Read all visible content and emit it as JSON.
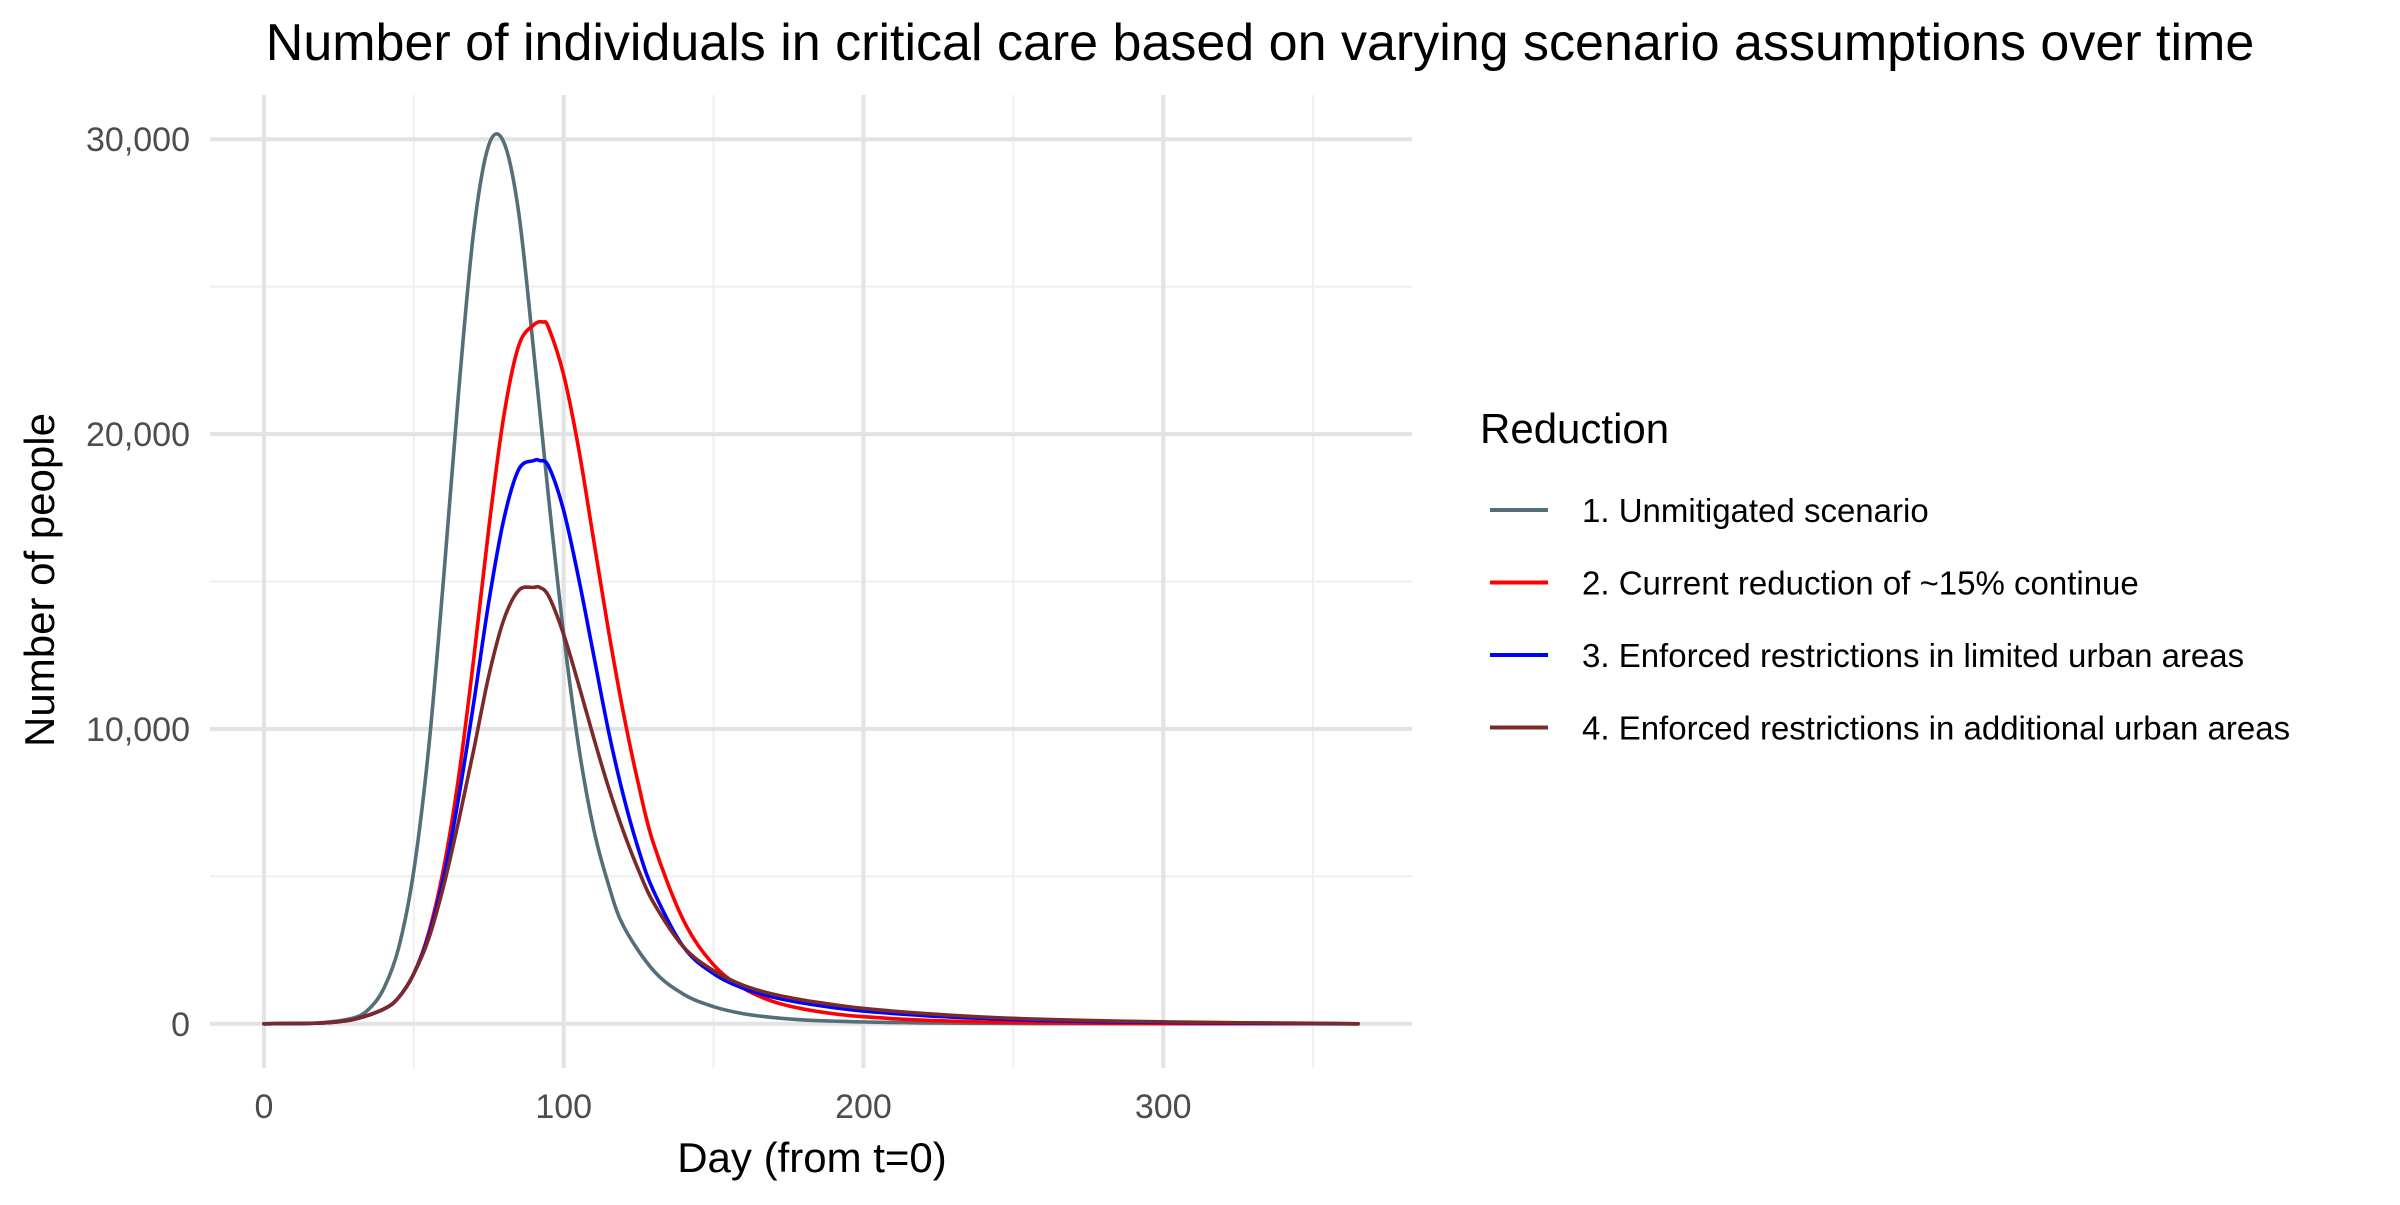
{
  "chart_data": {
    "type": "line",
    "title": "Number of individuals in critical care based on varying scenario assumptions over time",
    "xlabel": "Day (from t=0)",
    "ylabel": "Number of people",
    "xlim": [
      -18,
      383
    ],
    "ylim": [
      -1500,
      31500
    ],
    "x_ticks": [
      0,
      100,
      200,
      300
    ],
    "x_tick_labels": [
      "0",
      "100",
      "200",
      "300"
    ],
    "y_ticks": [
      0,
      10000,
      20000,
      30000
    ],
    "y_tick_labels": [
      "0",
      "10,000",
      "20,000",
      "30,000"
    ],
    "grid": true,
    "legend": {
      "title": "Reduction",
      "position": "right"
    },
    "series": [
      {
        "name": "1. Unmitigated scenario",
        "color": "#546e7a",
        "x": [
          0,
          10,
          20,
          30,
          35,
          40,
          45,
          50,
          55,
          60,
          65,
          70,
          75,
          80,
          85,
          90,
          95,
          100,
          105,
          110,
          115,
          120,
          130,
          140,
          150,
          160,
          170,
          180,
          190,
          200,
          220,
          240,
          260,
          280,
          300,
          320,
          340,
          365
        ],
        "y": [
          0,
          10,
          40,
          200,
          500,
          1200,
          2600,
          5200,
          9400,
          15200,
          21500,
          26900,
          29800,
          29900,
          27500,
          22800,
          17800,
          13200,
          9400,
          6600,
          4700,
          3300,
          1800,
          1000,
          580,
          340,
          210,
          130,
          90,
          60,
          30,
          15,
          8,
          5,
          3,
          2,
          1,
          0
        ]
      },
      {
        "name": "2. Current reduction of ~15% continue",
        "color": "#ff0000",
        "x": [
          0,
          10,
          20,
          30,
          40,
          45,
          50,
          55,
          60,
          65,
          70,
          75,
          80,
          85,
          90,
          93,
          95,
          100,
          105,
          110,
          115,
          120,
          125,
          130,
          140,
          150,
          160,
          170,
          180,
          190,
          200,
          220,
          240,
          260,
          280,
          300,
          320,
          340,
          365
        ],
        "y": [
          0,
          10,
          30,
          150,
          500,
          900,
          1700,
          3100,
          5300,
          8400,
          12400,
          16800,
          20600,
          23000,
          23700,
          23800,
          23600,
          22000,
          19500,
          16400,
          13300,
          10500,
          8100,
          6100,
          3500,
          2000,
          1200,
          750,
          500,
          340,
          240,
          120,
          60,
          30,
          15,
          8,
          4,
          2,
          0
        ]
      },
      {
        "name": "3. Enforced restrictions in limited urban areas",
        "color": "#0000ff",
        "x": [
          0,
          10,
          20,
          30,
          40,
          45,
          50,
          55,
          60,
          65,
          70,
          75,
          80,
          85,
          90,
          92,
          95,
          100,
          105,
          110,
          115,
          120,
          125,
          130,
          140,
          150,
          160,
          170,
          180,
          190,
          200,
          220,
          240,
          260,
          280,
          300,
          320,
          340,
          365
        ],
        "y": [
          0,
          10,
          30,
          150,
          500,
          900,
          1700,
          3000,
          5000,
          7700,
          10900,
          14300,
          17100,
          18800,
          19100,
          19100,
          18900,
          17400,
          15100,
          12500,
          9900,
          7700,
          5900,
          4500,
          2600,
          1700,
          1200,
          900,
          700,
          550,
          430,
          280,
          180,
          110,
          70,
          45,
          25,
          15,
          0
        ]
      },
      {
        "name": "4. Enforced restrictions in additional urban areas",
        "color": "#7b2a2a",
        "x": [
          0,
          10,
          20,
          30,
          40,
          45,
          50,
          55,
          60,
          65,
          70,
          75,
          80,
          85,
          90,
          92,
          95,
          100,
          105,
          110,
          115,
          120,
          125,
          130,
          140,
          150,
          160,
          170,
          180,
          190,
          200,
          220,
          240,
          260,
          280,
          300,
          320,
          340,
          365
        ],
        "y": [
          0,
          10,
          30,
          150,
          500,
          900,
          1700,
          2900,
          4700,
          6900,
          9300,
          11800,
          13700,
          14700,
          14800,
          14800,
          14500,
          13200,
          11500,
          9700,
          8000,
          6500,
          5200,
          4100,
          2600,
          1800,
          1300,
          1000,
          800,
          650,
          520,
          350,
          230,
          150,
          100,
          65,
          40,
          25,
          0
        ]
      }
    ]
  }
}
